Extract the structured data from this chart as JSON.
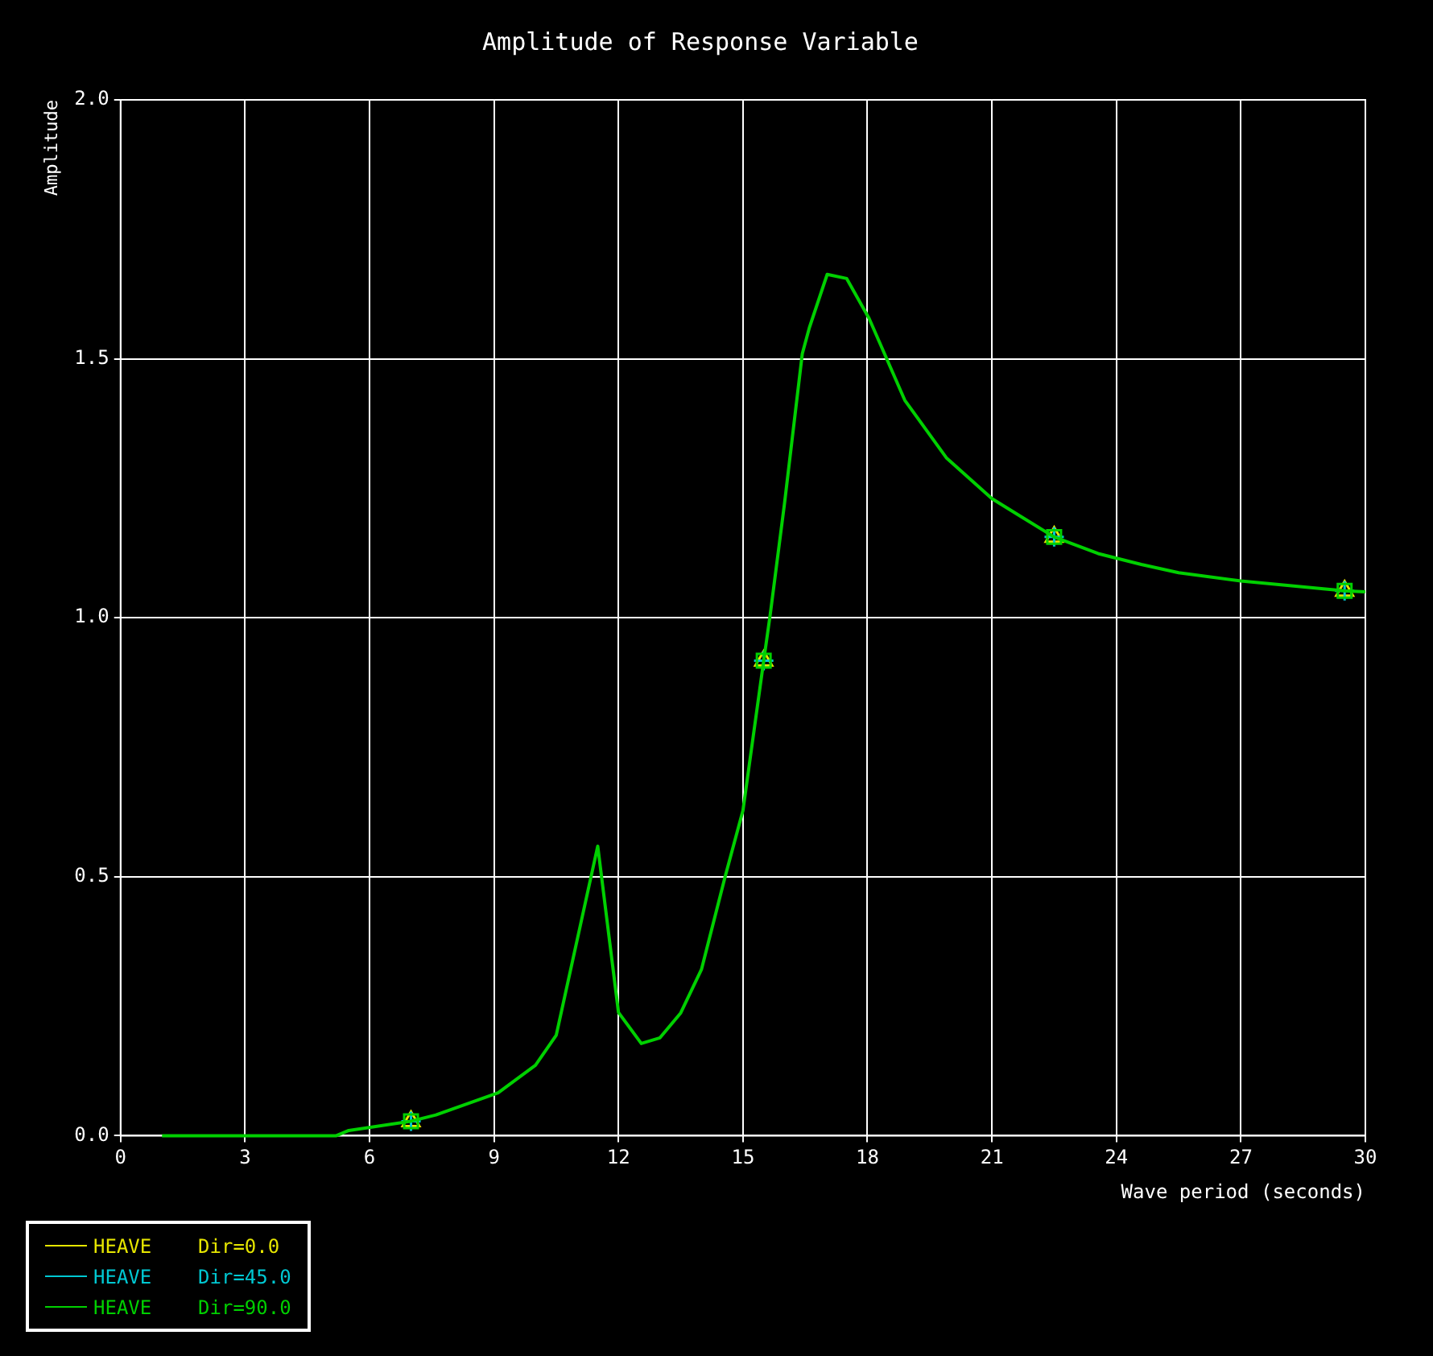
{
  "chart_data": {
    "type": "line",
    "title": "Amplitude of Response Variable",
    "xlabel": "Wave period (seconds)",
    "ylabel": "Amplitude",
    "xlim": [
      0,
      30
    ],
    "xticks": [
      0,
      3,
      6,
      9,
      12,
      15,
      18,
      21,
      24,
      27,
      30
    ],
    "ylim": [
      0,
      2
    ],
    "yticks": [
      {
        "value": 0,
        "label": "0.0"
      },
      {
        "value": 0.5,
        "label": "0.5"
      },
      {
        "value": 1,
        "label": "1.0"
      },
      {
        "value": 1.5,
        "label": "1.5"
      },
      {
        "value": 2,
        "label": "2.0"
      }
    ],
    "grid": true,
    "legend": "bottom left",
    "marker": "none",
    "line_style": "solid",
    "series": [
      {
        "name": "HEAVE    Dir=0.0",
        "type": "scatter",
        "color": "#e6e600",
        "marker": "triangle",
        "x": [
          7,
          15.5,
          22.5,
          29.5
        ],
        "values": [
          0.028,
          0.917,
          1.156,
          1.052
        ]
      },
      {
        "name": "HEAVE    Dir=45.0",
        "type": "scatter",
        "color": "#00c8d2",
        "marker": "cross",
        "x": [
          7,
          15.5,
          22.5,
          29.5
        ],
        "values": [
          0.028,
          0.917,
          1.156,
          1.052
        ]
      },
      {
        "name": "HEAVE    Dir=90.0",
        "color": "#00d000",
        "x": [
          1.0,
          5.2,
          5.5,
          7.0,
          7.6,
          9.1,
          10.0,
          10.5,
          11.5,
          12.0,
          12.55,
          13.0,
          13.5,
          14.0,
          14.57,
          15.0,
          15.5,
          15.66,
          16.0,
          16.43,
          16.6,
          17.03,
          17.5,
          18.04,
          18.9,
          19.9,
          21.0,
          22.5,
          23.56,
          24.6,
          25.5,
          27.0,
          29.5,
          30.0
        ],
        "values": [
          0,
          0,
          0.01,
          0.028,
          0.04,
          0.083,
          0.136,
          0.194,
          0.559,
          0.238,
          0.178,
          0.189,
          0.237,
          0.321,
          0.5,
          0.628,
          0.917,
          1.008,
          1.22,
          1.51,
          1.56,
          1.663,
          1.655,
          1.578,
          1.42,
          1.309,
          1.23,
          1.156,
          1.124,
          1.103,
          1.087,
          1.071,
          1.052,
          1.05
        ]
      },
      {
        "type": "scatter",
        "color": "#00d000",
        "marker": "square",
        "x": [
          7,
          15.5,
          22.5,
          29.5
        ],
        "values": [
          0.028,
          0.917,
          1.156,
          1.052
        ]
      }
    ]
  }
}
